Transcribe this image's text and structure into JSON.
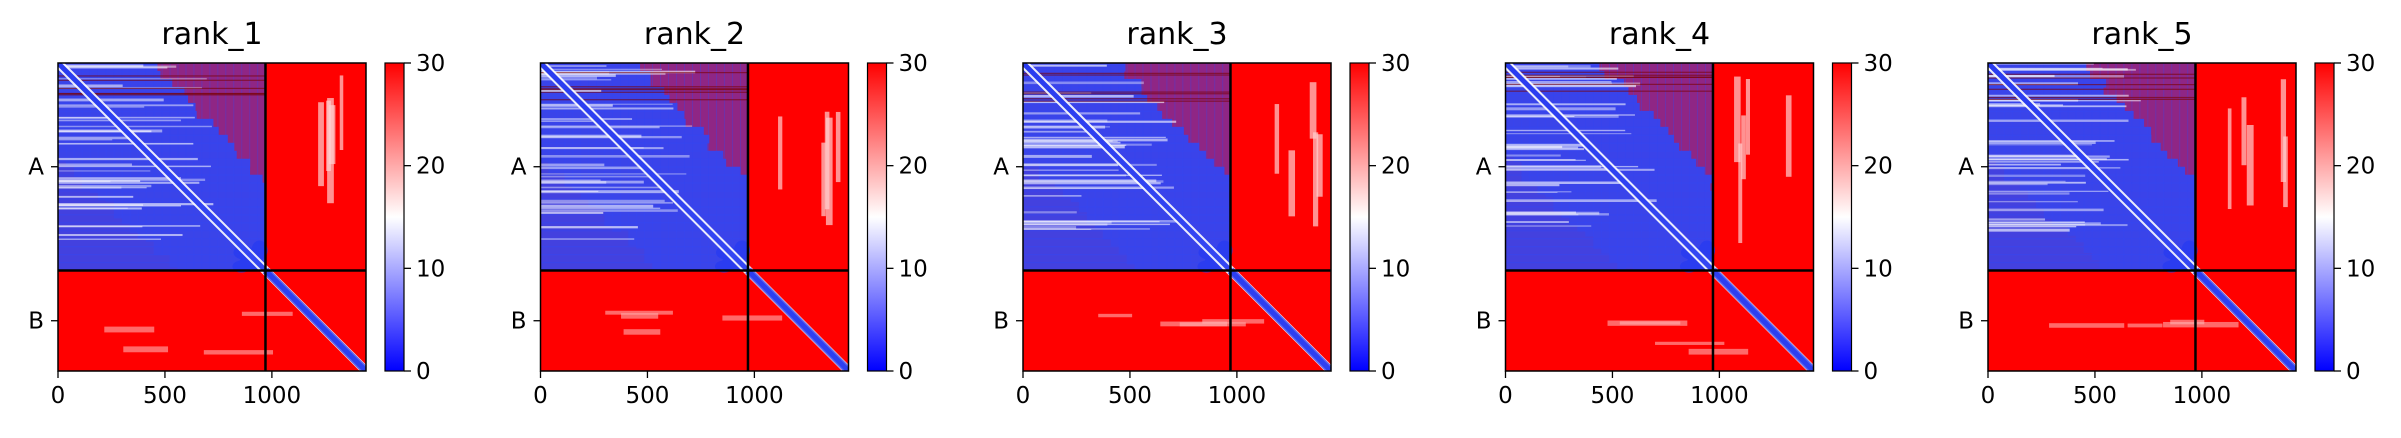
{
  "chart_data": [
    {
      "type": "heatmap",
      "title": "rank_1",
      "xticks": [
        0,
        500,
        1000
      ],
      "xlim": [
        0,
        1440
      ],
      "yticklabels": [
        "A",
        "B"
      ],
      "chain_break": 970,
      "colorbar": {
        "min": 0,
        "max": 30,
        "ticks": [
          0,
          10,
          20,
          30
        ],
        "colormap": [
          "#0000ff",
          "#ffffff",
          "#ff0000"
        ]
      }
    },
    {
      "type": "heatmap",
      "title": "rank_2",
      "xticks": [
        0,
        500,
        1000
      ],
      "xlim": [
        0,
        1440
      ],
      "yticklabels": [
        "A",
        "B"
      ],
      "chain_break": 970,
      "colorbar": {
        "min": 0,
        "max": 30,
        "ticks": [
          0,
          10,
          20,
          30
        ],
        "colormap": [
          "#0000ff",
          "#ffffff",
          "#ff0000"
        ]
      }
    },
    {
      "type": "heatmap",
      "title": "rank_3",
      "xticks": [
        0,
        500,
        1000
      ],
      "xlim": [
        0,
        1440
      ],
      "yticklabels": [
        "A",
        "B"
      ],
      "chain_break": 970,
      "colorbar": {
        "min": 0,
        "max": 30,
        "ticks": [
          0,
          10,
          20,
          30
        ],
        "colormap": [
          "#0000ff",
          "#ffffff",
          "#ff0000"
        ]
      }
    },
    {
      "type": "heatmap",
      "title": "rank_4",
      "xticks": [
        0,
        500,
        1000
      ],
      "xlim": [
        0,
        1440
      ],
      "yticklabels": [
        "A",
        "B"
      ],
      "chain_break": 970,
      "colorbar": {
        "min": 0,
        "max": 30,
        "ticks": [
          0,
          10,
          20,
          30
        ],
        "colormap": [
          "#0000ff",
          "#ffffff",
          "#ff0000"
        ]
      }
    },
    {
      "type": "heatmap",
      "title": "rank_5",
      "xticks": [
        0,
        500,
        1000
      ],
      "xlim": [
        0,
        1440
      ],
      "yticklabels": [
        "A",
        "B"
      ],
      "chain_break": 970,
      "colorbar": {
        "min": 0,
        "max": 30,
        "ticks": [
          0,
          10,
          20,
          30
        ],
        "colormap": [
          "#0000ff",
          "#ffffff",
          "#ff0000"
        ]
      }
    }
  ]
}
